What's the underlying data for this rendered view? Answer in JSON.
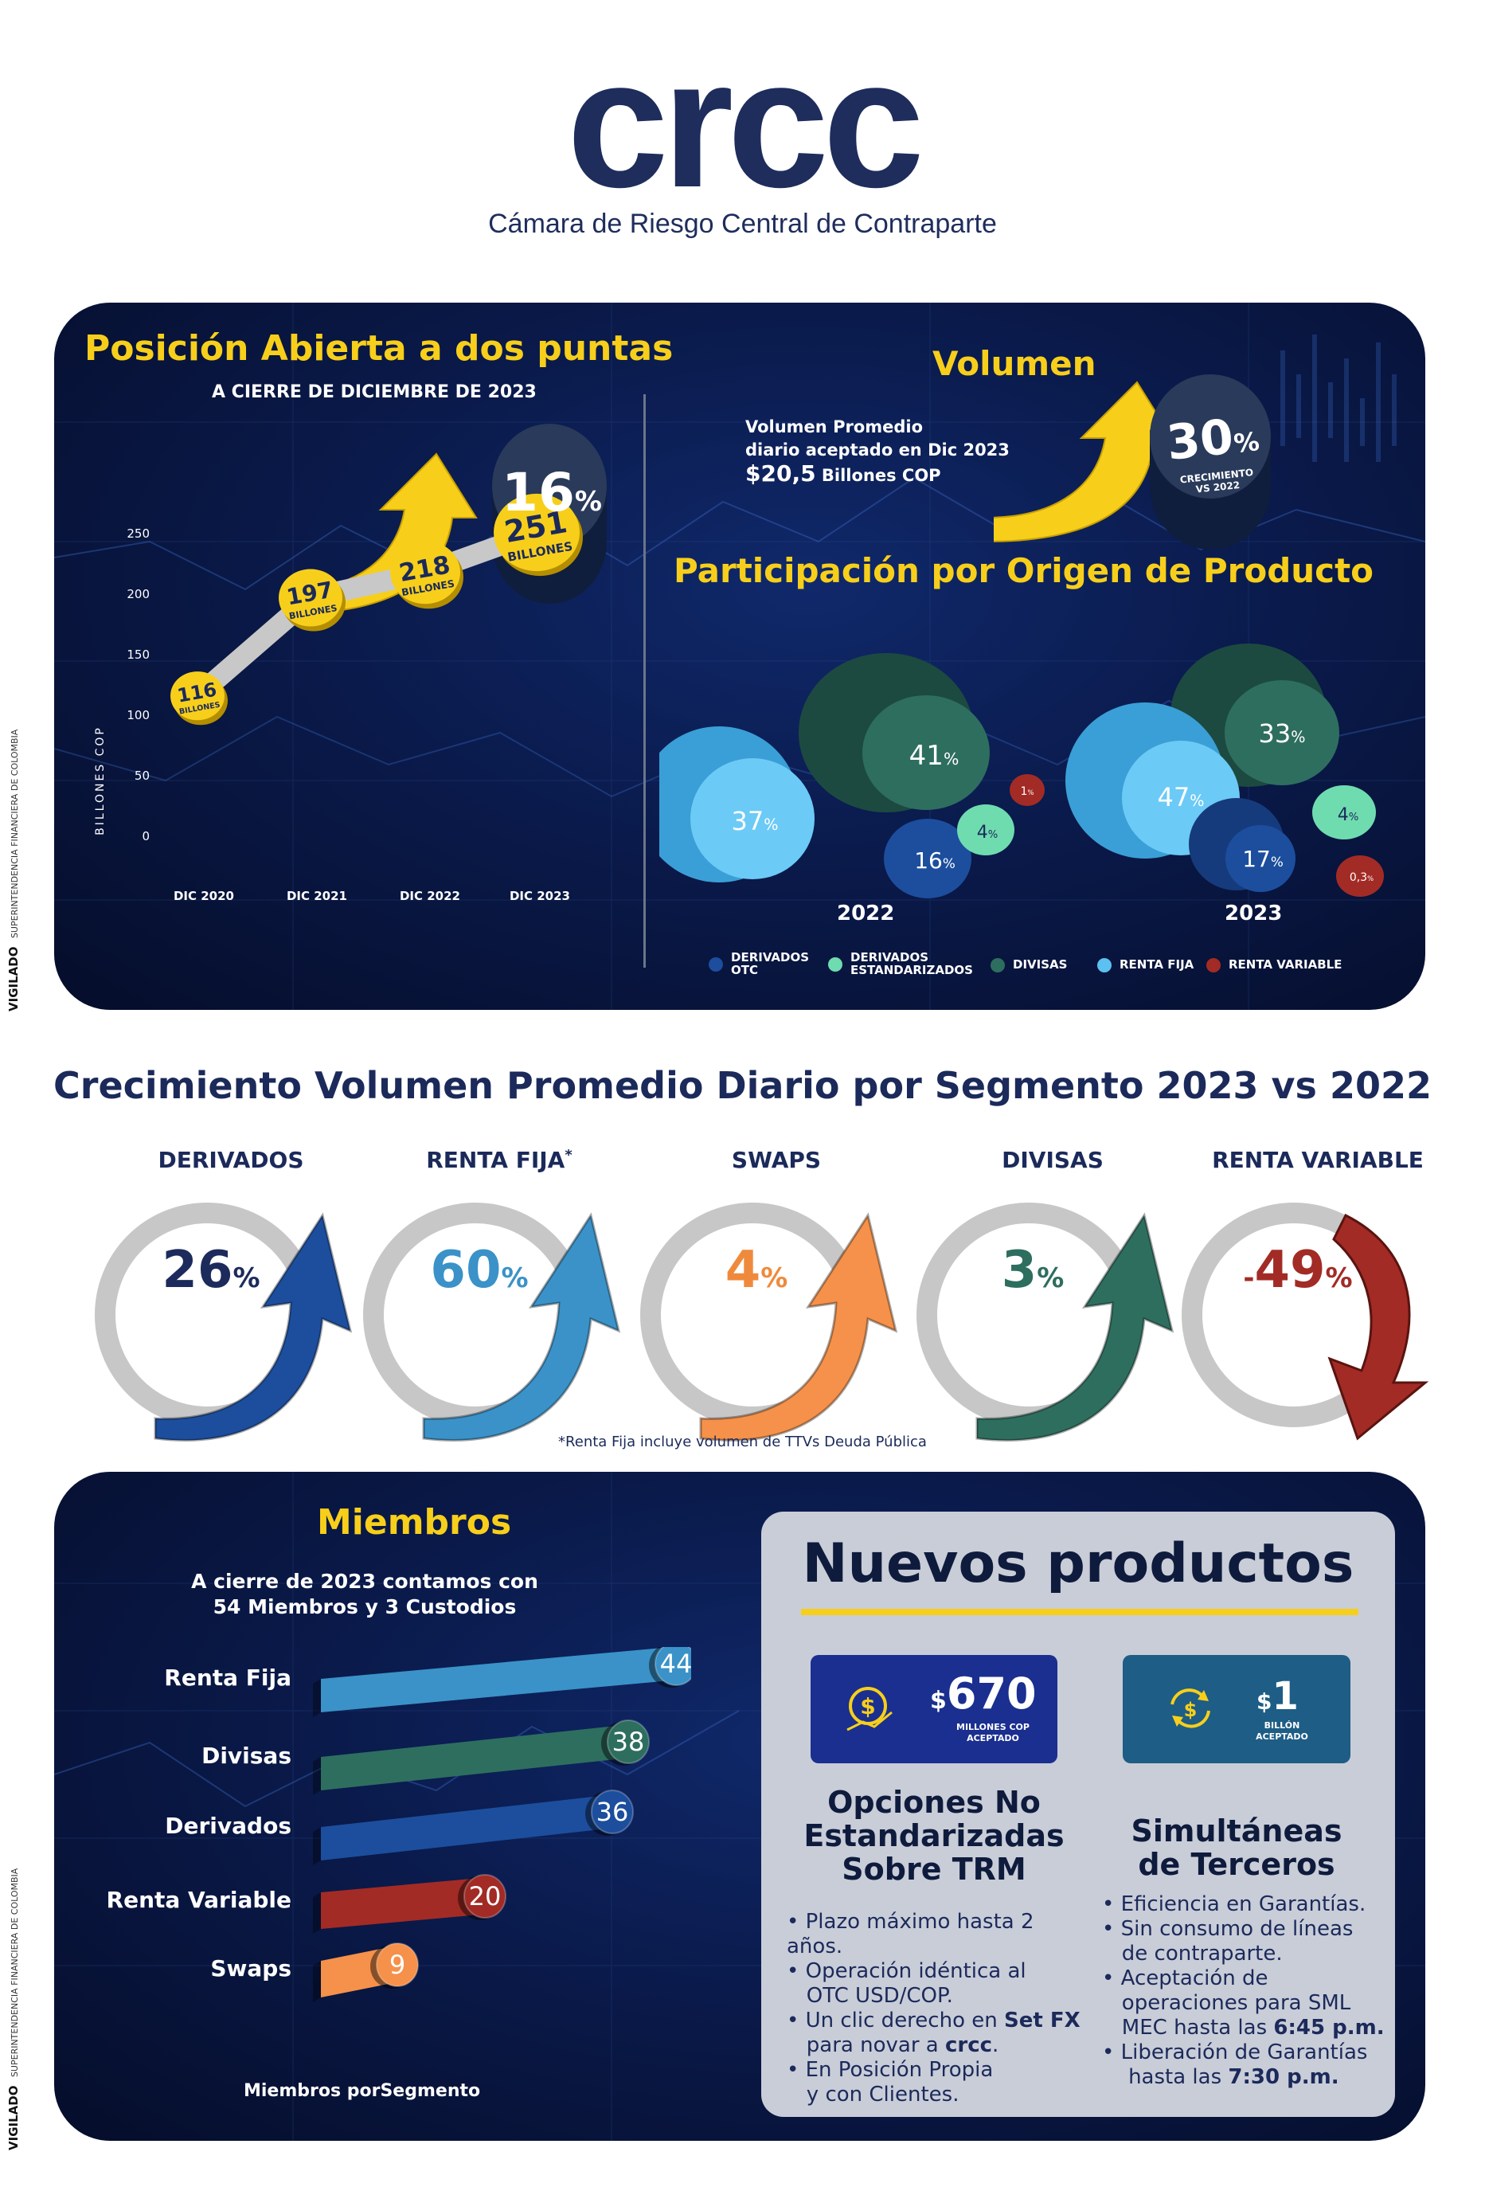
{
  "header": {
    "logo": "crcc",
    "subtitle": "Cámara de Riesgo Central de Contraparte"
  },
  "open_position": {
    "title": "Posición Abierta a dos puntas",
    "subtitle": "A CIERRE DE DICIEMBRE DE 2023",
    "growth_value": "16",
    "growth_unit": "%",
    "ylabel": "BILLONES COP",
    "yticks": [
      "0",
      "50",
      "100",
      "150",
      "200",
      "250"
    ],
    "points": [
      {
        "label": "DIC 2020",
        "value": "116",
        "unit": "BILLONES"
      },
      {
        "label": "DIC 2021",
        "value": "197",
        "unit": "BILLONES"
      },
      {
        "label": "DIC 2022",
        "value": "218",
        "unit": "BILLONES"
      },
      {
        "label": "DIC 2023",
        "value": "251",
        "unit": "BILLONES"
      }
    ]
  },
  "volume": {
    "title": "Volumen",
    "text_line1": "Volumen Promedio",
    "text_line2": "diario aceptado en Dic 2023",
    "amount": "$20,5",
    "amount_unit": "Billones COP",
    "growth_value": "30",
    "growth_unit": "%",
    "growth_caption1": "CRECIMIENTO",
    "growth_caption2": "VS 2022"
  },
  "participation": {
    "title": "Participación por Origen de Producto",
    "years": [
      {
        "year": "2022",
        "slices": {
          "divisas": "41",
          "renta_fija": "37",
          "otc": "16",
          "estandarizados": "4",
          "renta_variable": "1"
        }
      },
      {
        "year": "2023",
        "slices": {
          "divisas": "33",
          "renta_fija": "47",
          "otc": "17",
          "estandarizados": "4",
          "renta_variable": "0,3"
        }
      }
    ],
    "legend": [
      {
        "label1": "DERIVADOS",
        "label2": "OTC",
        "color": "#1c4e9d"
      },
      {
        "label1": "DERIVADOS",
        "label2": "ESTANDARIZADOS",
        "color": "#6fdcb0"
      },
      {
        "label1": "DIVISAS",
        "label2": "",
        "color": "#2e6e5f"
      },
      {
        "label1": "RENTA FIJA",
        "label2": "",
        "color": "#5cc0f0"
      },
      {
        "label1": "RENTA VARIABLE",
        "label2": "",
        "color": "#a32b25"
      }
    ]
  },
  "segments": {
    "title": "Crecimiento Volumen Promedio Diario por Segmento 2023 vs 2022",
    "items": [
      {
        "name": "DERIVADOS",
        "star": "",
        "value": "26",
        "sign": "",
        "unit": "%",
        "color": "#1c2b5c",
        "arrow": "#1c4e9d"
      },
      {
        "name": "RENTA FIJA",
        "star": "*",
        "value": "60",
        "sign": "",
        "unit": "%",
        "color": "#3a92c8",
        "arrow": "#3a92c8"
      },
      {
        "name": "SWAPS",
        "star": "",
        "value": "4",
        "sign": "",
        "unit": "%",
        "color": "#ef8a3c",
        "arrow": "#f5914a"
      },
      {
        "name": "DIVISAS",
        "star": "",
        "value": "3",
        "sign": "",
        "unit": "%",
        "color": "#2e6e5f",
        "arrow": "#2e6e5f"
      },
      {
        "name": "RENTA VARIABLE",
        "star": "",
        "value": "49",
        "sign": "-",
        "unit": "%",
        "color": "#a32b25",
        "arrow": "#a32b25"
      }
    ],
    "footnote": "*Renta Fija incluye volumen de TTVs Deuda Pública"
  },
  "members": {
    "title": "Miembros",
    "text1": "A cierre de 2023 contamos con",
    "text2": "54 Miembros y 3 Custodios",
    "bars": [
      {
        "label": "Renta Fija",
        "value": "44",
        "color": "#3a92c8"
      },
      {
        "label": "Divisas",
        "value": "38",
        "color": "#2e6e5f"
      },
      {
        "label": "Derivados",
        "value": "36",
        "color": "#1c4e9d"
      },
      {
        "label": "Renta Variable",
        "value": "20",
        "color": "#a32b25"
      },
      {
        "label": "Swaps",
        "value": "9",
        "color": "#f5914a"
      }
    ],
    "caption": "Miembros porSegmento"
  },
  "new_products": {
    "title": "Nuevos productos",
    "product1": {
      "amount": "670",
      "currency": "$",
      "unit1": "MILLONES COP",
      "unit2": "ACEPTADO",
      "name1": "Opciones No",
      "name2": "Estandarizadas",
      "name3": "Sobre TRM",
      "bullets": [
        {
          "l1": "Plazo máximo hasta 2 años.",
          "l2": ""
        },
        {
          "l1": "Operación idéntica al",
          "l2": "OTC USD/COP."
        },
        {
          "l1": "Un clic derecho en",
          "bold": "Set FX",
          "l2": "para novar a",
          "brand": "crcc",
          "end": "."
        },
        {
          "l1": "En Posición Propia",
          "l2": "y con Clientes."
        }
      ]
    },
    "product2": {
      "amount": "1",
      "currency": "$",
      "unit1": "BILLÓN",
      "unit2": "ACEPTADO",
      "name1": "Simultáneas",
      "name2": "de Terceros",
      "bullets": [
        {
          "l1": "Eficiencia en Garantías."
        },
        {
          "l1": "Sin consumo de líneas",
          "l2": "de contraparte."
        },
        {
          "l1": "Aceptación de",
          "l2": "operaciones para SML",
          "l3": "MEC hasta las",
          "bold3": "6:45 p.m."
        },
        {
          "l1": "Liberación de Garantías",
          "l2": "hasta las",
          "bold2": "7:30 p.m."
        }
      ]
    }
  },
  "watermark": {
    "label": "VIGILADO",
    "line1": "SUPERINTENDENCIA FINANCIERA",
    "line2": "DE COLOMBIA"
  },
  "colors": {
    "navy": "#1b2a5a",
    "yellow": "#f7cf1b",
    "panel": "#0a1a4b"
  }
}
